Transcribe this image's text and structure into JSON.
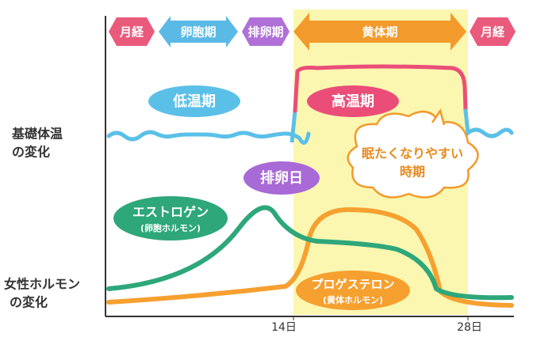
{
  "phases": [
    "月経",
    "卵胞期",
    "排卵期",
    "黄体期",
    "月経"
  ],
  "temperature": {
    "label": [
      "基礎体温",
      "の変化"
    ],
    "low": "低温期",
    "high": "高温期"
  },
  "ovulation": "排卵日",
  "sleepy": [
    "眠たくなりやすい",
    "時期"
  ],
  "hormones": {
    "label": [
      "女性ホルモン",
      "の変化"
    ],
    "estrogen": {
      "name": "エストロゲン",
      "note": "(卵胞ホルモン)"
    },
    "progesterone": {
      "name": "プロゲステロン",
      "note": "(黄体ホルモン)"
    }
  },
  "days": [
    "14日",
    "28日"
  ]
}
